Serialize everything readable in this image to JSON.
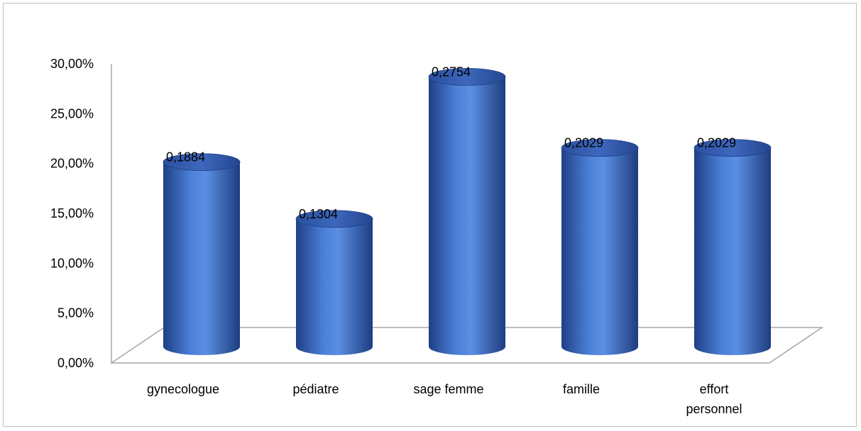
{
  "chart_data": {
    "type": "bar",
    "style": "3d-cylinder",
    "categories": [
      "gynecologue",
      "pédiatre",
      "sage femme",
      "famille",
      "effort personnel"
    ],
    "category_lines": [
      [
        "gynecologue"
      ],
      [
        "pédiatre"
      ],
      [
        "sage femme"
      ],
      [
        "famille"
      ],
      [
        "effort",
        "personnel"
      ]
    ],
    "values": [
      0.1884,
      0.1304,
      0.2754,
      0.2029,
      0.2029
    ],
    "data_labels": [
      "0,1884",
      "0,1304",
      "0,2754",
      "0,2029",
      "0,2029"
    ],
    "y_ticks": [
      "0,00%",
      "5,00%",
      "10,00%",
      "15,00%",
      "20,00%",
      "25,00%",
      "30,00%"
    ],
    "ylim": [
      0,
      0.3
    ],
    "title": "",
    "xlabel": "",
    "ylabel": "",
    "grid": false,
    "legend": "none",
    "bar_color": "#3b6fc9",
    "bar_dark": "#1f3f86",
    "bar_light": "#6e9ee8"
  }
}
